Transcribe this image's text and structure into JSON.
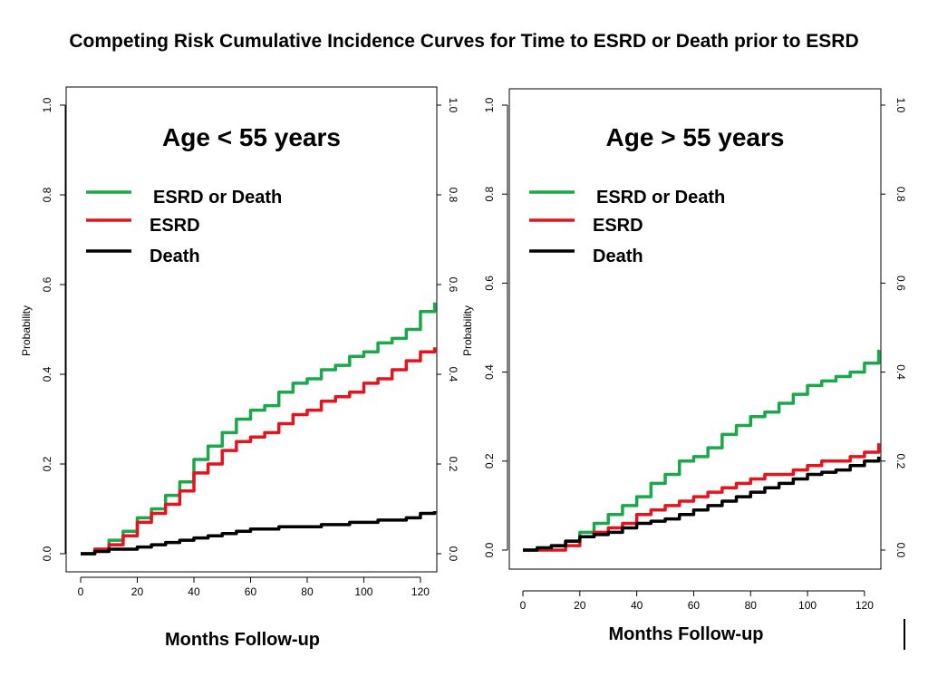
{
  "title": "Competing Risk Cumulative Incidence Curves for Time to ESRD or Death prior to ESRD",
  "colors": {
    "esrd_or_death": "#1aa84a",
    "esrd": "#e8121c",
    "death": "#000000"
  },
  "chart_data": [
    {
      "type": "line",
      "title": "Age < 55 years",
      "xlabel": "Months Follow-up",
      "ylabel": "Probability",
      "xlim": [
        0,
        125
      ],
      "ylim": [
        0,
        1.0
      ],
      "x_ticks": [
        "0",
        "20",
        "40",
        "60",
        "80",
        "100",
        "120"
      ],
      "y_ticks": [
        "0.0",
        "0.2",
        "0.4",
        "0.6",
        "0.8",
        "1.0"
      ],
      "legend_placement": "top-left",
      "series": [
        {
          "name": "ESRD or Death",
          "color": "#1aa84a",
          "x": [
            0,
            5,
            10,
            15,
            20,
            25,
            30,
            35,
            40,
            45,
            50,
            55,
            60,
            65,
            70,
            75,
            80,
            85,
            90,
            95,
            100,
            105,
            110,
            115,
            120,
            125
          ],
          "y": [
            0.0,
            0.01,
            0.03,
            0.05,
            0.08,
            0.1,
            0.13,
            0.16,
            0.21,
            0.24,
            0.27,
            0.3,
            0.32,
            0.33,
            0.36,
            0.38,
            0.39,
            0.41,
            0.42,
            0.44,
            0.45,
            0.47,
            0.48,
            0.5,
            0.54,
            0.56
          ]
        },
        {
          "name": "ESRD",
          "color": "#e8121c",
          "x": [
            0,
            5,
            10,
            15,
            20,
            25,
            30,
            35,
            40,
            45,
            50,
            55,
            60,
            65,
            70,
            75,
            80,
            85,
            90,
            95,
            100,
            105,
            110,
            115,
            120,
            125
          ],
          "y": [
            0.0,
            0.01,
            0.02,
            0.04,
            0.07,
            0.09,
            0.11,
            0.14,
            0.18,
            0.2,
            0.23,
            0.25,
            0.26,
            0.27,
            0.29,
            0.31,
            0.32,
            0.34,
            0.35,
            0.36,
            0.38,
            0.39,
            0.41,
            0.43,
            0.45,
            0.46
          ]
        },
        {
          "name": "Death",
          "color": "#000000",
          "x": [
            0,
            5,
            10,
            15,
            20,
            25,
            30,
            35,
            40,
            45,
            50,
            55,
            60,
            65,
            70,
            75,
            80,
            85,
            90,
            95,
            100,
            105,
            110,
            115,
            120,
            125
          ],
          "y": [
            0.0,
            0.005,
            0.01,
            0.01,
            0.015,
            0.02,
            0.025,
            0.03,
            0.035,
            0.04,
            0.045,
            0.05,
            0.055,
            0.055,
            0.06,
            0.06,
            0.06,
            0.065,
            0.065,
            0.07,
            0.07,
            0.075,
            0.075,
            0.08,
            0.09,
            0.095
          ]
        }
      ]
    },
    {
      "type": "line",
      "title": "Age > 55 years",
      "xlabel": "Months Follow-up",
      "ylabel": "Probability",
      "xlim": [
        0,
        125
      ],
      "ylim": [
        0,
        1.0
      ],
      "x_ticks": [
        "0",
        "20",
        "40",
        "60",
        "80",
        "100",
        "120"
      ],
      "y_ticks": [
        "0.0",
        "0.2",
        "0.4",
        "0.6",
        "0.8",
        "1.0"
      ],
      "legend_placement": "top-left",
      "series": [
        {
          "name": "ESRD or Death",
          "color": "#1aa84a",
          "x": [
            0,
            5,
            10,
            15,
            20,
            25,
            30,
            35,
            40,
            45,
            50,
            55,
            60,
            65,
            70,
            75,
            80,
            85,
            90,
            95,
            100,
            105,
            110,
            115,
            120,
            125
          ],
          "y": [
            0.0,
            0.005,
            0.01,
            0.02,
            0.04,
            0.06,
            0.08,
            0.1,
            0.12,
            0.15,
            0.17,
            0.2,
            0.21,
            0.23,
            0.26,
            0.28,
            0.3,
            0.31,
            0.33,
            0.35,
            0.37,
            0.38,
            0.39,
            0.4,
            0.42,
            0.45
          ]
        },
        {
          "name": "ESRD",
          "color": "#e8121c",
          "x": [
            0,
            5,
            10,
            15,
            20,
            25,
            30,
            35,
            40,
            45,
            50,
            55,
            60,
            65,
            70,
            75,
            80,
            85,
            90,
            95,
            100,
            105,
            110,
            115,
            120,
            125
          ],
          "y": [
            0.0,
            0.0,
            0.0,
            0.01,
            0.03,
            0.04,
            0.05,
            0.06,
            0.08,
            0.09,
            0.1,
            0.11,
            0.12,
            0.13,
            0.14,
            0.15,
            0.16,
            0.17,
            0.17,
            0.18,
            0.19,
            0.2,
            0.2,
            0.21,
            0.22,
            0.24
          ]
        },
        {
          "name": "Death",
          "color": "#000000",
          "x": [
            0,
            5,
            10,
            15,
            20,
            25,
            30,
            35,
            40,
            45,
            50,
            55,
            60,
            65,
            70,
            75,
            80,
            85,
            90,
            95,
            100,
            105,
            110,
            115,
            120,
            125
          ],
          "y": [
            0.0,
            0.005,
            0.01,
            0.02,
            0.03,
            0.035,
            0.04,
            0.05,
            0.06,
            0.065,
            0.07,
            0.08,
            0.09,
            0.1,
            0.11,
            0.12,
            0.13,
            0.14,
            0.15,
            0.16,
            0.17,
            0.175,
            0.18,
            0.19,
            0.2,
            0.21
          ]
        }
      ]
    }
  ]
}
